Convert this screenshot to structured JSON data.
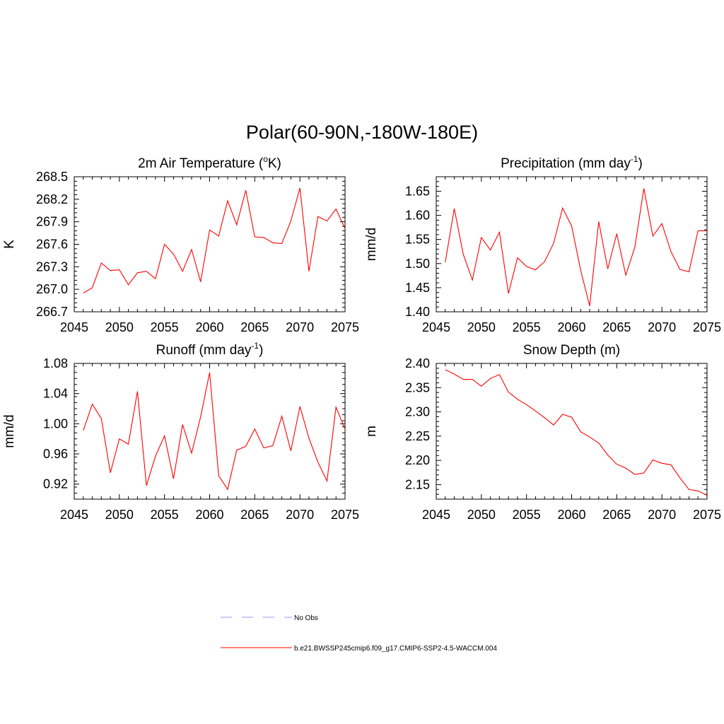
{
  "figure": {
    "title": "Polar(60-90N,-180W-180E)"
  },
  "legend": [
    {
      "label": "No Obs",
      "color": "#9999ee",
      "dash": "dashed"
    },
    {
      "label": "b.e21.BWSSP245cmip6.f09_g17.CMIP6-SSP2-4.5-WACCM.004",
      "color": "#ff0000",
      "dash": "solid"
    }
  ],
  "chart_data": [
    {
      "type": "line",
      "title": "2m Air Temperature (°K)",
      "title_parts": {
        "pre": "2m Air Temperature (",
        "sup": "o",
        "post": "K)"
      },
      "xlabel": "",
      "ylabel": "K",
      "xlim": [
        2045,
        2075
      ],
      "ylim": [
        266.7,
        268.5
      ],
      "xticks": [
        2045,
        2050,
        2055,
        2060,
        2065,
        2070,
        2075
      ],
      "yticks": [
        266.7,
        267.0,
        267.3,
        267.6,
        267.9,
        268.2,
        268.5
      ],
      "ytick_labels": [
        "266.7",
        "267.0",
        "267.3",
        "267.6",
        "267.9",
        "268.2",
        "268.5"
      ],
      "color": "#ff0000",
      "x": [
        2046,
        2047,
        2048,
        2049,
        2050,
        2051,
        2052,
        2053,
        2054,
        2055,
        2056,
        2057,
        2058,
        2059,
        2060,
        2061,
        2062,
        2063,
        2064,
        2065,
        2066,
        2067,
        2068,
        2069,
        2070,
        2071,
        2072,
        2073,
        2074,
        2075
      ],
      "values": [
        266.95,
        267.02,
        267.35,
        267.25,
        267.26,
        267.06,
        267.22,
        267.24,
        267.14,
        267.6,
        267.47,
        267.24,
        267.53,
        267.1,
        267.79,
        267.71,
        268.18,
        267.86,
        268.32,
        267.7,
        267.69,
        267.62,
        267.61,
        267.91,
        268.35,
        267.24,
        267.97,
        267.91,
        268.07,
        267.81
      ]
    },
    {
      "type": "line",
      "title": "Precipitation (mm day-1)",
      "title_parts": {
        "pre": "Precipitation (mm day",
        "sup": "-1",
        "post": ")"
      },
      "xlabel": "",
      "ylabel": "mm/d",
      "xlim": [
        2045,
        2075
      ],
      "ylim": [
        1.4,
        1.68
      ],
      "xticks": [
        2045,
        2050,
        2055,
        2060,
        2065,
        2070,
        2075
      ],
      "yticks": [
        1.4,
        1.45,
        1.5,
        1.55,
        1.6,
        1.65
      ],
      "ytick_labels": [
        "1.40",
        "1.45",
        "1.50",
        "1.55",
        "1.60",
        "1.65"
      ],
      "color": "#ff0000",
      "x": [
        2046,
        2047,
        2048,
        2049,
        2050,
        2051,
        2052,
        2053,
        2054,
        2055,
        2056,
        2057,
        2058,
        2059,
        2060,
        2061,
        2062,
        2063,
        2064,
        2065,
        2066,
        2067,
        2068,
        2069,
        2070,
        2071,
        2072,
        2073,
        2074,
        2075
      ],
      "values": [
        1.503,
        1.614,
        1.519,
        1.466,
        1.554,
        1.528,
        1.565,
        1.438,
        1.512,
        1.494,
        1.487,
        1.504,
        1.542,
        1.615,
        1.578,
        1.486,
        1.412,
        1.587,
        1.489,
        1.562,
        1.476,
        1.534,
        1.656,
        1.557,
        1.583,
        1.525,
        1.488,
        1.483,
        1.568,
        1.568
      ]
    },
    {
      "type": "line",
      "title": "Runoff (mm day-1)",
      "title_parts": {
        "pre": "Runoff (mm day",
        "sup": "-1",
        "post": ")"
      },
      "xlabel": "",
      "ylabel": "mm/d",
      "xlim": [
        2045,
        2075
      ],
      "ylim": [
        0.9,
        1.08
      ],
      "xticks": [
        2045,
        2050,
        2055,
        2060,
        2065,
        2070,
        2075
      ],
      "yticks": [
        0.92,
        0.96,
        1.0,
        1.04,
        1.08
      ],
      "ytick_labels": [
        "0.92",
        "0.96",
        "1.00",
        "1.04",
        "1.08"
      ],
      "color": "#ff0000",
      "x": [
        2046,
        2047,
        2048,
        2049,
        2050,
        2051,
        2052,
        2053,
        2054,
        2055,
        2056,
        2057,
        2058,
        2059,
        2060,
        2061,
        2062,
        2063,
        2064,
        2065,
        2066,
        2067,
        2068,
        2069,
        2070,
        2071,
        2072,
        2073,
        2074,
        2075
      ],
      "values": [
        0.991,
        1.026,
        1.007,
        0.935,
        0.98,
        0.973,
        1.043,
        0.918,
        0.957,
        0.984,
        0.927,
        0.999,
        0.961,
        1.009,
        1.068,
        0.931,
        0.913,
        0.965,
        0.97,
        0.993,
        0.968,
        0.971,
        1.01,
        0.964,
        1.023,
        0.981,
        0.949,
        0.924,
        1.022,
        0.993
      ]
    },
    {
      "type": "line",
      "title": "Snow Depth (m)",
      "title_parts": {
        "pre": "Snow Depth (m)",
        "sup": "",
        "post": ""
      },
      "xlabel": "",
      "ylabel": "m",
      "xlim": [
        2045,
        2075
      ],
      "ylim": [
        2.12,
        2.4
      ],
      "xticks": [
        2045,
        2050,
        2055,
        2060,
        2065,
        2070,
        2075
      ],
      "yticks": [
        2.15,
        2.2,
        2.25,
        2.3,
        2.35,
        2.4
      ],
      "ytick_labels": [
        "2.15",
        "2.20",
        "2.25",
        "2.30",
        "2.35",
        "2.40"
      ],
      "color": "#ff0000",
      "x": [
        2046,
        2047,
        2048,
        2049,
        2050,
        2051,
        2052,
        2053,
        2054,
        2055,
        2056,
        2057,
        2058,
        2059,
        2060,
        2061,
        2062,
        2063,
        2064,
        2065,
        2066,
        2067,
        2068,
        2069,
        2070,
        2071,
        2072,
        2073,
        2074,
        2075
      ],
      "values": [
        2.387,
        2.378,
        2.367,
        2.367,
        2.353,
        2.369,
        2.377,
        2.341,
        2.326,
        2.315,
        2.302,
        2.288,
        2.273,
        2.295,
        2.289,
        2.259,
        2.248,
        2.236,
        2.211,
        2.192,
        2.184,
        2.171,
        2.174,
        2.201,
        2.194,
        2.191,
        2.164,
        2.14,
        2.137,
        2.128
      ]
    }
  ]
}
